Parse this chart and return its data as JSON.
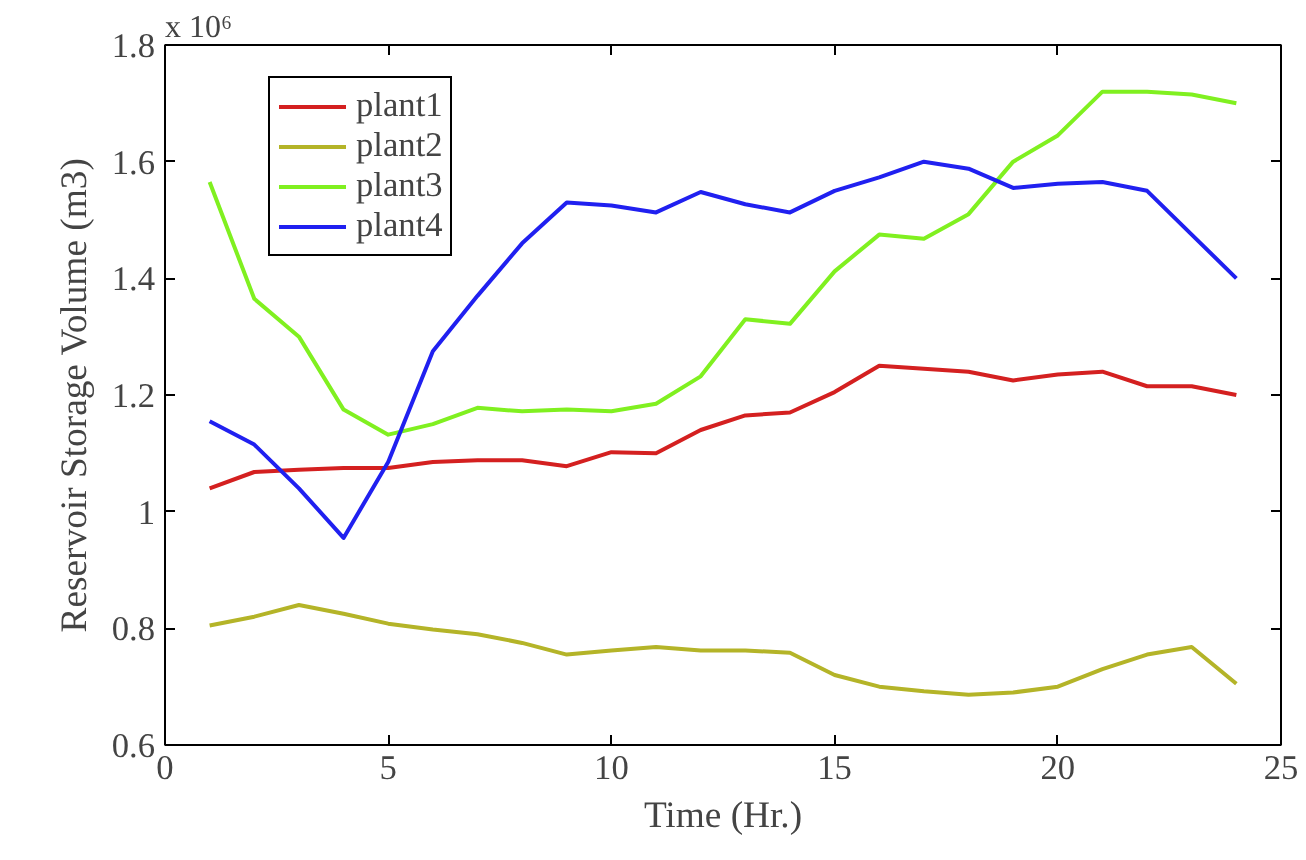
{
  "chart_data": {
    "type": "line",
    "xlabel": "Time (Hr.)",
    "ylabel": "Reservoir Storage Volume (m3)",
    "annotations": [
      "x 10⁶"
    ],
    "x": [
      1,
      2,
      3,
      4,
      5,
      6,
      7,
      8,
      9,
      10,
      11,
      12,
      13,
      14,
      15,
      16,
      17,
      18,
      19,
      20,
      21,
      22,
      23,
      24
    ],
    "xlim": [
      0,
      25
    ],
    "xticks": [
      0,
      5,
      10,
      15,
      20,
      25
    ],
    "ylim": [
      0.6,
      1.8
    ],
    "yticks": [
      0.6,
      0.8,
      1,
      1.2,
      1.4,
      1.6,
      1.8
    ],
    "grid": false,
    "legend": "top left",
    "line_style": "solid",
    "series": [
      {
        "name": "plant1",
        "color": "#d42020",
        "values": [
          1.04,
          1.068,
          1.072,
          1.075,
          1.075,
          1.085,
          1.088,
          1.088,
          1.078,
          1.102,
          1.1,
          1.14,
          1.165,
          1.17,
          1.205,
          1.25,
          1.245,
          1.24,
          1.225,
          1.235,
          1.24,
          1.215,
          1.215,
          1.2
        ]
      },
      {
        "name": "plant2",
        "color": "#b4b428",
        "values": [
          0.805,
          0.82,
          0.84,
          0.825,
          0.808,
          0.798,
          0.79,
          0.775,
          0.755,
          0.762,
          0.768,
          0.762,
          0.762,
          0.758,
          0.72,
          0.7,
          0.692,
          0.686,
          0.69,
          0.7,
          0.73,
          0.755,
          0.768,
          0.705
        ]
      },
      {
        "name": "plant3",
        "color": "#80f020",
        "values": [
          1.565,
          1.365,
          1.3,
          1.175,
          1.132,
          1.15,
          1.178,
          1.172,
          1.175,
          1.172,
          1.185,
          1.232,
          1.33,
          1.322,
          1.412,
          1.475,
          1.468,
          1.51,
          1.6,
          1.645,
          1.72,
          1.72,
          1.715,
          1.7
        ]
      },
      {
        "name": "plant4",
        "color": "#2020f0",
        "values": [
          1.155,
          1.115,
          1.04,
          0.955,
          1.085,
          1.275,
          1.37,
          1.46,
          1.53,
          1.525,
          1.513,
          1.548,
          1.527,
          1.513,
          1.55,
          1.573,
          1.6,
          1.588,
          1.555,
          1.562,
          1.565,
          1.55,
          1.475,
          1.4
        ]
      }
    ]
  }
}
